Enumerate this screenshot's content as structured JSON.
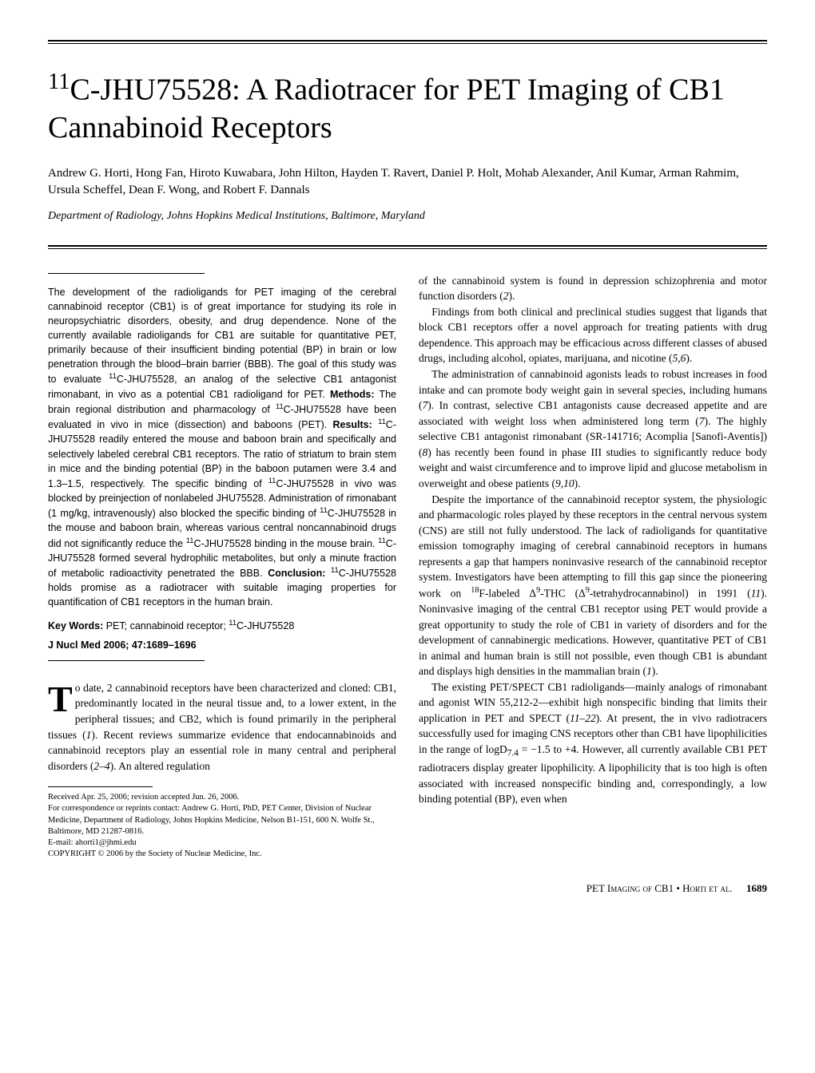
{
  "title_html": "<sup>11</sup>C-JHU75528: A Radiotracer for PET Imaging of CB1 Cannabinoid Receptors",
  "authors": "Andrew G. Horti, Hong Fan, Hiroto Kuwabara, John Hilton, Hayden T. Ravert, Daniel P. Holt, Mohab Alexander, Anil Kumar, Arman Rahmim, Ursula Scheffel, Dean F. Wong, and Robert F. Dannals",
  "affiliation": "Department of Radiology, Johns Hopkins Medical Institutions, Baltimore, Maryland",
  "abstract_html": "The development of the radioligands for PET imaging of the cerebral cannabinoid receptor (CB1) is of great importance for studying its role in neuropsychiatric disorders, obesity, and drug dependence. None of the currently available radioligands for CB1 are suitable for quantitative PET, primarily because of their insufficient binding potential (BP) in brain or low penetration through the blood–brain barrier (BBB). The goal of this study was to evaluate <sup>11</sup>C-JHU75528, an analog of the selective CB1 antagonist rimonabant, in vivo as a potential CB1 radioligand for PET. <b>Methods:</b> The brain regional distribution and pharmacology of <sup>11</sup>C-JHU75528 have been evaluated in vivo in mice (dissection) and baboons (PET). <b>Results:</b> <sup>11</sup>C-JHU75528 readily entered the mouse and baboon brain and specifically and selectively labeled cerebral CB1 receptors. The ratio of striatum to brain stem in mice and the binding potential (BP) in the baboon putamen were 3.4 and 1.3–1.5, respectively. The specific binding of <sup>11</sup>C-JHU75528 in vivo was blocked by preinjection of nonlabeled JHU75528. Administration of rimonabant (1 mg/kg, intravenously) also blocked the specific binding of <sup>11</sup>C-JHU75528 in the mouse and baboon brain, whereas various central noncannabinoid drugs did not significantly reduce the <sup>11</sup>C-JHU75528 binding in the mouse brain. <sup>11</sup>C-JHU75528 formed several hydrophilic metabolites, but only a minute fraction of metabolic radioactivity penetrated the BBB. <b>Conclusion:</b> <sup>11</sup>C-JHU75528 holds promise as a radiotracer with suitable imaging properties for quantification of CB1 receptors in the human brain.",
  "keywords_label": "Key Words:",
  "keywords_html": "PET; cannabinoid receptor; <sup>11</sup>C-JHU75528",
  "citation": "J Nucl Med 2006; 47:1689–1696",
  "intro_first_html": "o date, 2 cannabinoid receptors have been characterized and cloned: CB1, predominantly located in the neural tissue and, to a lower extent, in the peripheral tissues; and CB2, which is found primarily in the peripheral tissues (<i>1</i>). Recent reviews summarize evidence that endocannabinoids and cannabinoid receptors play an essential role in many central and peripheral disorders (<i>2–4</i>). An altered regulation",
  "dropcap": "T",
  "footnotes": {
    "received": "Received Apr. 25, 2006; revision accepted Jun. 26, 2006.",
    "correspondence": "For correspondence or reprints contact: Andrew G. Horti, PhD, PET Center, Division of Nuclear Medicine, Department of Radiology, Johns Hopkins Medicine, Nelson B1-151, 600 N. Wolfe St., Baltimore, MD 21287-0816.",
    "email": "E-mail: ahorti1@jhmi.edu",
    "copyright": "COPYRIGHT © 2006 by the Society of Nuclear Medicine, Inc."
  },
  "right_paras_html": [
    "of the cannabinoid system is found in depression schizophrenia and motor function disorders (<i>2</i>).",
    "Findings from both clinical and preclinical studies suggest that ligands that block CB1 receptors offer a novel approach for treating patients with drug dependence. This approach may be efficacious across different classes of abused drugs, including alcohol, opiates, marijuana, and nicotine (<i>5,6</i>).",
    "The administration of cannabinoid agonists leads to robust increases in food intake and can promote body weight gain in several species, including humans (<i>7</i>). In contrast, selective CB1 antagonists cause decreased appetite and are associated with weight loss when administered long term (<i>7</i>). The highly selective CB1 antagonist rimonabant (SR-141716; Acomplia [Sanofi-Aventis]) (<i>8</i>) has recently been found in phase III studies to significantly reduce body weight and waist circumference and to improve lipid and glucose metabolism in overweight and obese patients (<i>9,10</i>).",
    "Despite the importance of the cannabinoid receptor system, the physiologic and pharmacologic roles played by these receptors in the central nervous system (CNS) are still not fully understood. The lack of radioligands for quantitative emission tomography imaging of cerebral cannabinoid receptors in humans represents a gap that hampers noninvasive research of the cannabinoid receptor system. Investigators have been attempting to fill this gap since the pioneering work on <sup>18</sup>F-labeled Δ<sup>9</sup>-THC (Δ<sup>9</sup>-tetrahydrocannabinol) in 1991 (<i>11</i>). Noninvasive imaging of the central CB1 receptor using PET would provide a great opportunity to study the role of CB1 in variety of disorders and for the development of cannabinergic medications. However, quantitative PET of CB1 in animal and human brain is still not possible, even though CB1 is abundant and displays high densities in the mammalian brain (<i>1</i>).",
    "The existing PET/SPECT CB1 radioligands—mainly analogs of rimonabant and agonist WIN 55,212-2—exhibit high nonspecific binding that limits their application in PET and SPECT (<i>11–22</i>). At present, the in vivo radiotracers successfully used for imaging CNS receptors other than CB1 have lipophilicities in the range of logD<sub>7.4</sub> = −1.5 to +4. However, all currently available CB1 PET radiotracers display greater lipophilicity. A lipophilicity that is too high is often associated with increased nonspecific binding and, correspondingly, a low binding potential (BP), even when"
  ],
  "footer": {
    "running_title": "PET Imaging of CB1 • Horti et al.",
    "page": "1689"
  }
}
